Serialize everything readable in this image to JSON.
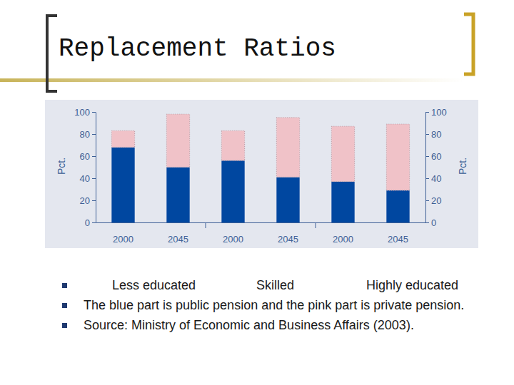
{
  "slide": {
    "title": "Replacement Ratios",
    "bullets": [
      "The blue part is public pension and the pink part is private pension.",
      "Source: Ministry of Economic and Business Affairs (2003)."
    ]
  },
  "chart_data": {
    "type": "bar",
    "stacked": true,
    "categories": [
      "2000",
      "2045",
      "2000",
      "2045",
      "2000",
      "2045"
    ],
    "groups": [
      "Less educated",
      "Skilled",
      "Highly educated"
    ],
    "series": [
      {
        "color": "#0047a0",
        "values": [
          68,
          50,
          56,
          41,
          37,
          29
        ]
      },
      {
        "color": "#f0c2c8",
        "values": [
          15,
          48,
          27,
          54,
          50,
          60
        ]
      }
    ],
    "ylabel": "Pct.",
    "y2label": "Pct.",
    "ylim": [
      0,
      100
    ],
    "yticks": [
      0,
      20,
      40,
      60,
      80,
      100
    ],
    "y2lim": [
      0,
      100
    ],
    "y2ticks": [
      0,
      20,
      40,
      60,
      80,
      100
    ],
    "grid": false
  }
}
